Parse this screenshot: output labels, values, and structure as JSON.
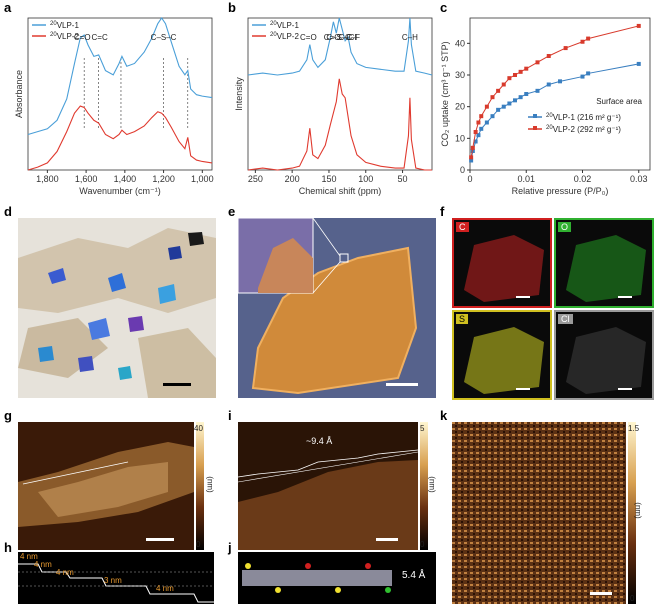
{
  "panel_labels": [
    "a",
    "b",
    "c",
    "d",
    "e",
    "f",
    "g",
    "h",
    "i",
    "j",
    "k"
  ],
  "colors": {
    "vlp1": "#4a9fd8",
    "vlp2": "#e03a2f",
    "vlp1_line": "#3a7fc0",
    "vlp2_line": "#d83a2c"
  },
  "chart_data": [
    {
      "panel": "a",
      "type": "line",
      "title": "",
      "xlabel": "Wavenumber (cm⁻¹)",
      "ylabel": "Absorbance",
      "xlim": [
        1900,
        950
      ],
      "xticks": [
        "1,800",
        "1,600",
        "1,400",
        "1,200",
        "1,000"
      ],
      "x_tick_values": [
        1800,
        1600,
        1400,
        1200,
        1000
      ],
      "legend": [
        {
          "label_sup": "20",
          "label": "VLP-1",
          "color": "#4a9fd8"
        },
        {
          "label_sup": "20",
          "label": "VLP-2",
          "color": "#e03a2f"
        }
      ],
      "annotations": [
        {
          "text": "C=O",
          "x": 1620
        },
        {
          "text": "C=C",
          "x": 1530
        },
        {
          "text": "C–S–C",
          "x": 1200
        }
      ],
      "dashed_markers": [
        1610,
        1535,
        1420,
        1200,
        1075
      ],
      "series": [
        {
          "name": "VLP-1",
          "x": [
            1900,
            1850,
            1800,
            1750,
            1700,
            1660,
            1630,
            1610,
            1590,
            1560,
            1535,
            1500,
            1460,
            1430,
            1415,
            1390,
            1350,
            1300,
            1260,
            1230,
            1210,
            1190,
            1160,
            1120,
            1090,
            1075,
            1060,
            1030,
            1000,
            950
          ],
          "y": [
            0.3,
            0.32,
            0.34,
            0.4,
            0.55,
            0.8,
            0.98,
            1.0,
            0.93,
            0.85,
            0.86,
            0.75,
            0.72,
            0.8,
            0.85,
            0.78,
            0.8,
            0.88,
            0.98,
            1.08,
            1.12,
            1.08,
            0.95,
            0.78,
            0.72,
            0.75,
            0.62,
            0.58,
            0.57,
            0.56
          ]
        },
        {
          "name": "VLP-2",
          "x": [
            1900,
            1850,
            1800,
            1750,
            1700,
            1660,
            1630,
            1610,
            1590,
            1560,
            1535,
            1500,
            1460,
            1430,
            1415,
            1390,
            1350,
            1300,
            1260,
            1230,
            1210,
            1190,
            1160,
            1120,
            1090,
            1075,
            1060,
            1030,
            1000,
            950
          ],
          "y": [
            0.05,
            0.07,
            0.1,
            0.18,
            0.32,
            0.45,
            0.5,
            0.49,
            0.45,
            0.4,
            0.38,
            0.3,
            0.27,
            0.3,
            0.33,
            0.3,
            0.32,
            0.36,
            0.42,
            0.46,
            0.45,
            0.42,
            0.35,
            0.25,
            0.2,
            0.28,
            0.15,
            0.12,
            0.11,
            0.1
          ]
        }
      ]
    },
    {
      "panel": "b",
      "type": "line",
      "title": "",
      "xlabel": "Chemical shift (ppm)",
      "ylabel": "Intensity",
      "xlim": [
        260,
        10
      ],
      "xticks": [
        "250",
        "200",
        "150",
        "100",
        "50"
      ],
      "x_tick_values": [
        250,
        200,
        150,
        100,
        50
      ],
      "legend": [
        {
          "label_sup": "20",
          "label": "VLP-1",
          "color": "#4a9fd8"
        },
        {
          "label_sup": "20",
          "label": "VLP-2",
          "color": "#e03a2f"
        }
      ],
      "annotations": [
        {
          "text": "C=O",
          "x": 178
        },
        {
          "text": "C=C",
          "x": 146
        },
        {
          "text": "C–S–C",
          "x": 136
        },
        {
          "text": "C–Cl",
          "x": 125
        },
        {
          "text": "C–H",
          "x": 40
        },
        {
          "text": "C–F",
          "x": 118
        }
      ],
      "series": [
        {
          "name": "VLP-1",
          "x": [
            260,
            240,
            220,
            200,
            190,
            180,
            176,
            172,
            165,
            155,
            148,
            144,
            140,
            136,
            132,
            128,
            124,
            120,
            112,
            100,
            80,
            60,
            48,
            42,
            40,
            38,
            32,
            20,
            10
          ],
          "y": [
            0.62,
            0.63,
            0.62,
            0.63,
            0.64,
            0.7,
            0.78,
            0.7,
            0.66,
            0.7,
            0.82,
            0.9,
            0.84,
            0.92,
            0.86,
            0.8,
            0.82,
            0.74,
            0.68,
            0.66,
            0.65,
            0.64,
            0.64,
            0.8,
            0.92,
            0.78,
            0.64,
            0.63,
            0.62
          ]
        },
        {
          "name": "VLP-2",
          "x": [
            260,
            240,
            220,
            200,
            190,
            180,
            176,
            172,
            165,
            155,
            148,
            144,
            140,
            136,
            132,
            128,
            124,
            120,
            112,
            100,
            80,
            60,
            48,
            42,
            40,
            38,
            32,
            20,
            10
          ],
          "y": [
            0.12,
            0.13,
            0.12,
            0.13,
            0.14,
            0.22,
            0.34,
            0.2,
            0.18,
            0.25,
            0.36,
            0.42,
            0.48,
            0.6,
            0.52,
            0.5,
            0.4,
            0.3,
            0.2,
            0.16,
            0.14,
            0.13,
            0.13,
            0.3,
            0.5,
            0.28,
            0.13,
            0.12,
            0.12
          ]
        }
      ]
    },
    {
      "panel": "c",
      "type": "scatter",
      "title": "",
      "xlabel": "Relative pressure (P/P₀)",
      "ylabel": "CO₂ uptake (cm³ g⁻¹ STP)",
      "xlim": [
        0,
        0.032
      ],
      "ylim": [
        0,
        48
      ],
      "xticks": [
        "0",
        "0.01",
        "0.02",
        "0.03"
      ],
      "x_tick_values": [
        0,
        0.01,
        0.02,
        0.03
      ],
      "yticks": [
        "0",
        "10",
        "20",
        "30",
        "40"
      ],
      "y_tick_values": [
        0,
        10,
        20,
        30,
        40
      ],
      "legend_title": "Surface area",
      "legend": [
        {
          "label_sup": "20",
          "label": "VLP-1",
          "extra": "(216 m² g⁻¹)",
          "color": "#3a7fc0"
        },
        {
          "label_sup": "20",
          "label": "VLP-2",
          "extra": "(292 m² g⁻¹)",
          "color": "#d83a2c"
        }
      ],
      "series": [
        {
          "name": "VLP-1 (216 m² g⁻¹)",
          "x": [
            0.0002,
            0.0005,
            0.001,
            0.0015,
            0.002,
            0.003,
            0.004,
            0.005,
            0.006,
            0.007,
            0.008,
            0.009,
            0.01,
            0.012,
            0.014,
            0.016,
            0.02,
            0.021,
            0.03
          ],
          "y": [
            3,
            6,
            9,
            11,
            13,
            15,
            17,
            19,
            20,
            21,
            22,
            23,
            24,
            25,
            27,
            28,
            29.5,
            30.5,
            33.5
          ]
        },
        {
          "name": "VLP-2 (292 m² g⁻¹)",
          "x": [
            0.0002,
            0.0005,
            0.001,
            0.0015,
            0.002,
            0.003,
            0.004,
            0.005,
            0.006,
            0.007,
            0.008,
            0.009,
            0.01,
            0.012,
            0.014,
            0.017,
            0.02,
            0.021,
            0.03
          ],
          "y": [
            4,
            7,
            12,
            15,
            17,
            20,
            23,
            25,
            27,
            29,
            30,
            31,
            32,
            34,
            36,
            38.5,
            40.5,
            41.5,
            45.5
          ]
        }
      ]
    }
  ],
  "panel_f_labels": [
    "C",
    "O",
    "S",
    "Cl"
  ],
  "panel_g": {
    "cbar_max": "40",
    "cbar_min": "0",
    "unit": "(nm)"
  },
  "panel_h": {
    "steps": [
      "4 nm",
      "4 nm",
      "4 nm",
      "3 nm",
      "4 nm"
    ]
  },
  "panel_i": {
    "cbar_max": "5",
    "cbar_min": "0",
    "unit": "(nm)",
    "annotation": "~9.4 Å"
  },
  "panel_j": {
    "annotation": "5.4 Å"
  },
  "panel_k": {
    "cbar_max": "1.5",
    "cbar_min": "0",
    "unit": "(nm)"
  }
}
